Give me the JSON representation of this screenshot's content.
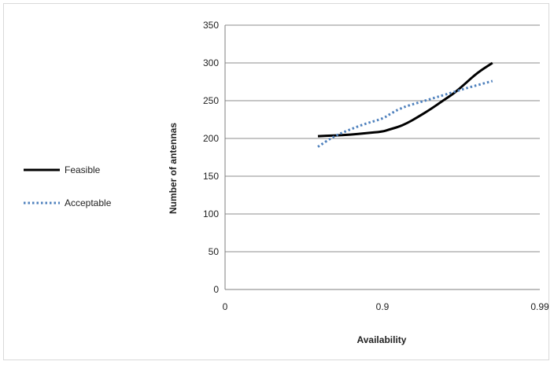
{
  "chart_data": {
    "type": "line",
    "title": "",
    "xlabel": "Availability",
    "ylabel": "Number of antennas",
    "x_tick_labels": [
      "0",
      "0.9",
      "0.99"
    ],
    "y_ticks": [
      0,
      50,
      100,
      150,
      200,
      250,
      300,
      350
    ],
    "y_tick_labels": [
      "0",
      "50",
      "100",
      "150",
      "200",
      "250",
      "300",
      "350"
    ],
    "ylim": [
      0,
      350
    ],
    "grid": true,
    "legend_position": "left",
    "series": [
      {
        "name": "Feasible",
        "style": "solid",
        "color": "#000000",
        "x": [
          0.86,
          0.87,
          0.88,
          0.89,
          0.9,
          0.91,
          0.92,
          0.93,
          0.94,
          0.95,
          0.96,
          0.965,
          0.97,
          0.975,
          0.98
        ],
        "values": [
          203,
          204,
          205,
          207,
          209,
          212,
          215,
          220,
          228,
          238,
          252,
          260,
          272,
          287,
          300
        ]
      },
      {
        "name": "Acceptable",
        "style": "dotted",
        "color": "#4f81bd",
        "x": [
          0.86,
          0.87,
          0.88,
          0.89,
          0.9,
          0.91,
          0.92,
          0.93,
          0.94,
          0.95,
          0.96,
          0.97,
          0.98
        ],
        "values": [
          189,
          203,
          212,
          220,
          226,
          232,
          238,
          243,
          247,
          252,
          258,
          266,
          276
        ]
      }
    ]
  }
}
